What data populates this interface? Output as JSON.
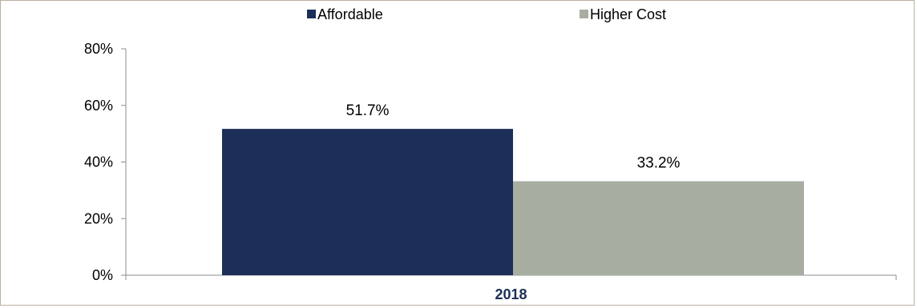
{
  "chart_data": {
    "type": "bar",
    "categories": [
      "2018"
    ],
    "series": [
      {
        "name": "Affordable",
        "values": [
          51.7
        ],
        "color": "#1b2f58"
      },
      {
        "name": "Higher Cost",
        "values": [
          33.2
        ],
        "color": "#a8ada2"
      }
    ],
    "data_labels": [
      "51.7%",
      "33.2%"
    ],
    "ylim": [
      0,
      80
    ],
    "yticks": [
      0,
      20,
      40,
      60,
      80
    ],
    "ytick_labels": [
      "0%",
      "20%",
      "40%",
      "60%",
      "80%"
    ],
    "title": "",
    "xlabel": "",
    "ylabel": "",
    "legend_position": "top-center",
    "grid": false,
    "axis_color": "#8c8c8c",
    "frame_color": "#b9b09f",
    "category_label_color": "#1a2f57"
  }
}
